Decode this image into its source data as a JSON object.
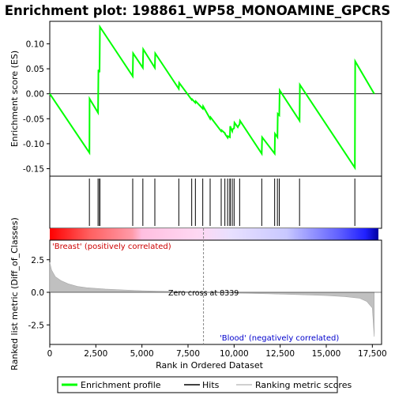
{
  "title": "Enrichment plot: 198861_WP58_MONOAMINE_GPCRS",
  "colors": {
    "profile": "#00ff00",
    "hits": "#000000",
    "metric": "#c0c0c0",
    "pos_label": "#cc0000",
    "neg_label": "#0000cc"
  },
  "chart_data": [
    {
      "type": "line",
      "name": "enrichment_profile",
      "ylabel": "Enrichment score (ES)",
      "xlim": [
        0,
        18000
      ],
      "ylim": [
        -0.165,
        0.145
      ],
      "y_ticks": [
        0.1,
        0.05,
        0.0,
        -0.05,
        -0.1,
        -0.15
      ],
      "y_tick_labels": [
        "0.10",
        "0.05",
        "0.00",
        "-0.05",
        "-0.10",
        "-0.15"
      ],
      "points": [
        [
          0,
          0.0
        ],
        [
          2150,
          -0.118
        ],
        [
          2160,
          -0.01
        ],
        [
          2620,
          -0.038
        ],
        [
          2640,
          0.048
        ],
        [
          2700,
          0.043
        ],
        [
          2720,
          0.134
        ],
        [
          4500,
          0.035
        ],
        [
          4520,
          0.081
        ],
        [
          5050,
          0.052
        ],
        [
          5070,
          0.089
        ],
        [
          5700,
          0.052
        ],
        [
          5720,
          0.081
        ],
        [
          7000,
          0.01
        ],
        [
          7020,
          0.022
        ],
        [
          7700,
          -0.012
        ],
        [
          7720,
          -0.011
        ],
        [
          7900,
          -0.018
        ],
        [
          7920,
          -0.015
        ],
        [
          8300,
          -0.03
        ],
        [
          8320,
          -0.025
        ],
        [
          8700,
          -0.05
        ],
        [
          8720,
          -0.047
        ],
        [
          9300,
          -0.075
        ],
        [
          9320,
          -0.073
        ],
        [
          9500,
          -0.079
        ],
        [
          9520,
          -0.081
        ],
        [
          9650,
          -0.088
        ],
        [
          9670,
          -0.085
        ],
        [
          9770,
          -0.087
        ],
        [
          9790,
          -0.065
        ],
        [
          9900,
          -0.075
        ],
        [
          9920,
          -0.071
        ],
        [
          10000,
          -0.069
        ],
        [
          10020,
          -0.058
        ],
        [
          10200,
          -0.067
        ],
        [
          10220,
          -0.065
        ],
        [
          10300,
          -0.061
        ],
        [
          10320,
          -0.054
        ],
        [
          11500,
          -0.12
        ],
        [
          11520,
          -0.087
        ],
        [
          12200,
          -0.12
        ],
        [
          12220,
          -0.08
        ],
        [
          12350,
          -0.087
        ],
        [
          12370,
          -0.04
        ],
        [
          12450,
          -0.043
        ],
        [
          12470,
          0.007
        ],
        [
          13550,
          -0.054
        ],
        [
          13570,
          0.018
        ],
        [
          16550,
          -0.148
        ],
        [
          16570,
          0.065
        ],
        [
          17600,
          0.0
        ]
      ]
    },
    {
      "type": "hits",
      "name": "hits",
      "x": [
        2150,
        2620,
        2700,
        2720,
        4500,
        5050,
        5700,
        7000,
        7700,
        7900,
        8300,
        8700,
        9300,
        9500,
        9650,
        9770,
        9790,
        9900,
        10000,
        10300,
        11500,
        12200,
        12350,
        12450,
        13550,
        16550
      ]
    },
    {
      "type": "area",
      "name": "ranking_metric",
      "ylabel": "Ranked list metric (Diff_of_Classes)",
      "xlabel": "Rank in Ordered Dataset",
      "xlim": [
        0,
        18000
      ],
      "ylim": [
        -4.0,
        4.0
      ],
      "x_ticks": [
        0,
        2500,
        5000,
        7500,
        10000,
        12500,
        15000,
        17500
      ],
      "x_tick_labels": [
        "0",
        "2,500",
        "5,000",
        "7,500",
        "10,000",
        "12,500",
        "15,000",
        "17,500"
      ],
      "y_ticks": [
        2.5,
        0.0,
        -2.5
      ],
      "y_tick_labels": [
        "2.5",
        "0.0",
        "-2.5"
      ],
      "points": [
        [
          0,
          2.3
        ],
        [
          100,
          1.7
        ],
        [
          300,
          1.2
        ],
        [
          600,
          0.9
        ],
        [
          1000,
          0.65
        ],
        [
          1500,
          0.45
        ],
        [
          2000,
          0.35
        ],
        [
          3000,
          0.25
        ],
        [
          4000,
          0.18
        ],
        [
          5000,
          0.12
        ],
        [
          6000,
          0.08
        ],
        [
          7000,
          0.05
        ],
        [
          8000,
          0.02
        ],
        [
          8339,
          0.0
        ],
        [
          9000,
          -0.03
        ],
        [
          10000,
          -0.06
        ],
        [
          11000,
          -0.09
        ],
        [
          12000,
          -0.12
        ],
        [
          13000,
          -0.16
        ],
        [
          14000,
          -0.2
        ],
        [
          15000,
          -0.25
        ],
        [
          16000,
          -0.33
        ],
        [
          16800,
          -0.45
        ],
        [
          17200,
          -0.7
        ],
        [
          17500,
          -1.2
        ],
        [
          17600,
          -3.4
        ]
      ],
      "zero_cross_label": "Zero cross at 8339",
      "zero_cross": 8339,
      "pos_label": "'Breast' (positively correlated)",
      "neg_label": "'Blood' (negatively correlated)"
    }
  ],
  "legend": {
    "items": [
      {
        "label": "Enrichment profile",
        "color": "#00ff00"
      },
      {
        "label": "Hits",
        "color": "#000000"
      },
      {
        "label": "Ranking metric scores",
        "color": "#c0c0c0"
      }
    ]
  }
}
